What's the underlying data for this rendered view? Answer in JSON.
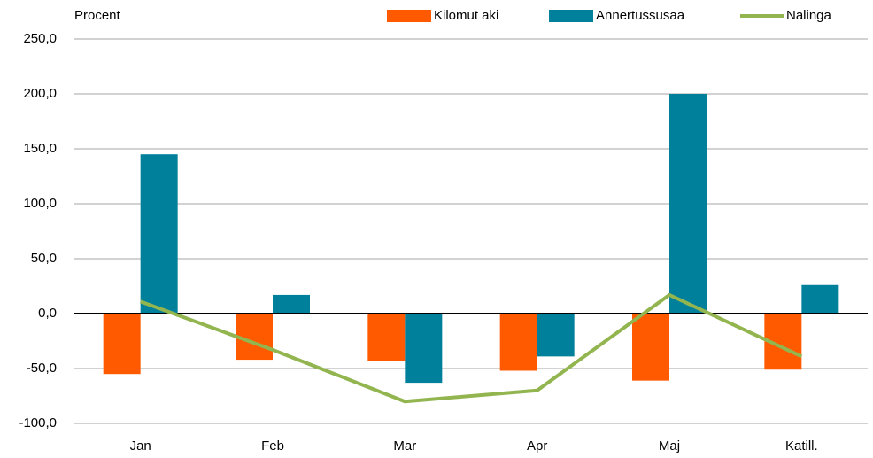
{
  "chart_data": {
    "type": "bar",
    "y_label": "Procent",
    "categories": [
      "Jan",
      "Feb",
      "Mar",
      "Apr",
      "Maj",
      "Katill."
    ],
    "series": [
      {
        "name": "Kilomut aki",
        "color": "#ff5a00",
        "type": "bar",
        "values": [
          -55,
          -42,
          -43,
          -52,
          -61,
          -51
        ]
      },
      {
        "name": "Annertussusaa",
        "color": "#00809a",
        "type": "bar",
        "values": [
          145,
          17,
          -63,
          -39,
          200,
          26
        ]
      },
      {
        "name": "Nalinga",
        "color": "#92b550",
        "type": "line",
        "values": [
          11,
          -33,
          -80,
          -70,
          17,
          -39
        ]
      }
    ],
    "ylim": [
      -100,
      250
    ],
    "yticks": [
      {
        "value": -100,
        "label": "-100,0"
      },
      {
        "value": -50,
        "label": "-50,0"
      },
      {
        "value": 0,
        "label": "0,0"
      },
      {
        "value": 50,
        "label": "50,0"
      },
      {
        "value": 100,
        "label": "100,0"
      },
      {
        "value": 150,
        "label": "150,0"
      },
      {
        "value": 200,
        "label": "200,0"
      },
      {
        "value": 250,
        "label": "250,0"
      }
    ],
    "grid": true,
    "legend": "top"
  }
}
